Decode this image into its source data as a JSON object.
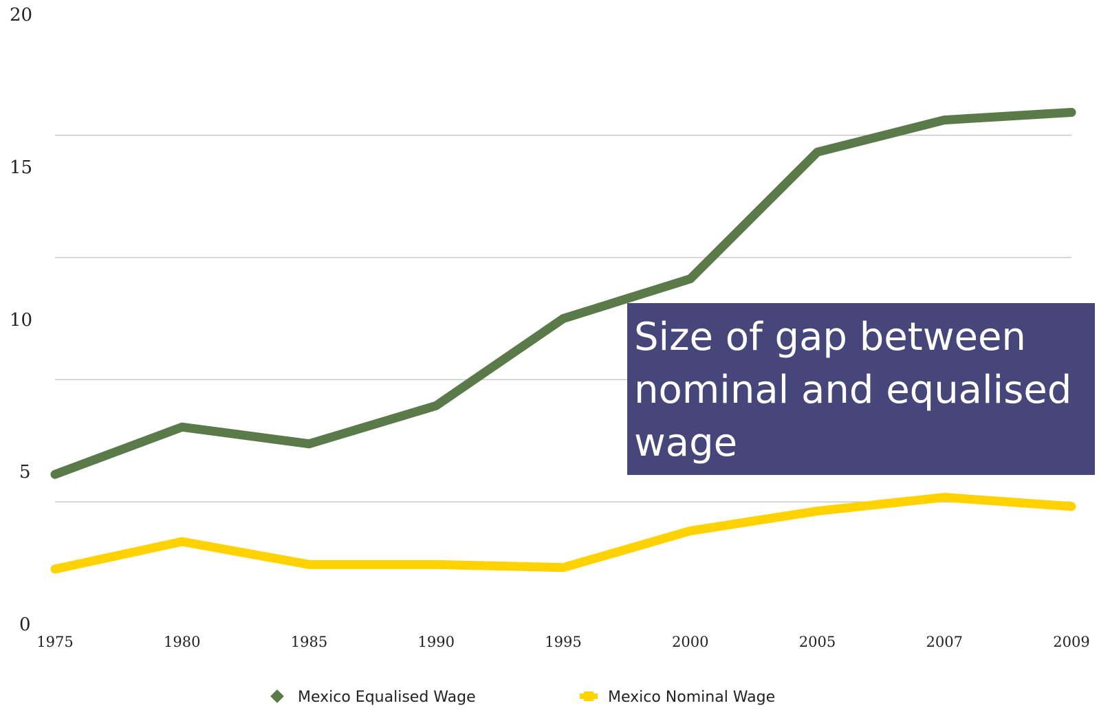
{
  "chart_data": {
    "type": "line",
    "x": [
      "1975",
      "1980",
      "1985",
      "1990",
      "1995",
      "2000",
      "2005",
      "2007",
      "2009"
    ],
    "series": [
      {
        "name": "Mexico Equalised Wage",
        "color": "#5a7a4a",
        "marker": "diamond",
        "values": [
          4.9,
          6.45,
          5.9,
          7.15,
          10.0,
          11.3,
          15.45,
          16.5,
          16.75
        ]
      },
      {
        "name": "Mexico Nominal Wage",
        "color": "#ffd200",
        "marker": "square",
        "values": [
          1.8,
          2.7,
          1.95,
          1.95,
          1.85,
          3.05,
          3.7,
          4.15,
          3.85
        ]
      }
    ],
    "ylim": [
      0,
      20
    ],
    "yticks": [
      "0",
      "5",
      "10",
      "15",
      "20"
    ],
    "grid": true,
    "legend_position": "bottom",
    "annotation": {
      "lines": [
        "Size of gap between",
        "nominal and equalised",
        "wage"
      ],
      "background": "#46467a"
    }
  }
}
